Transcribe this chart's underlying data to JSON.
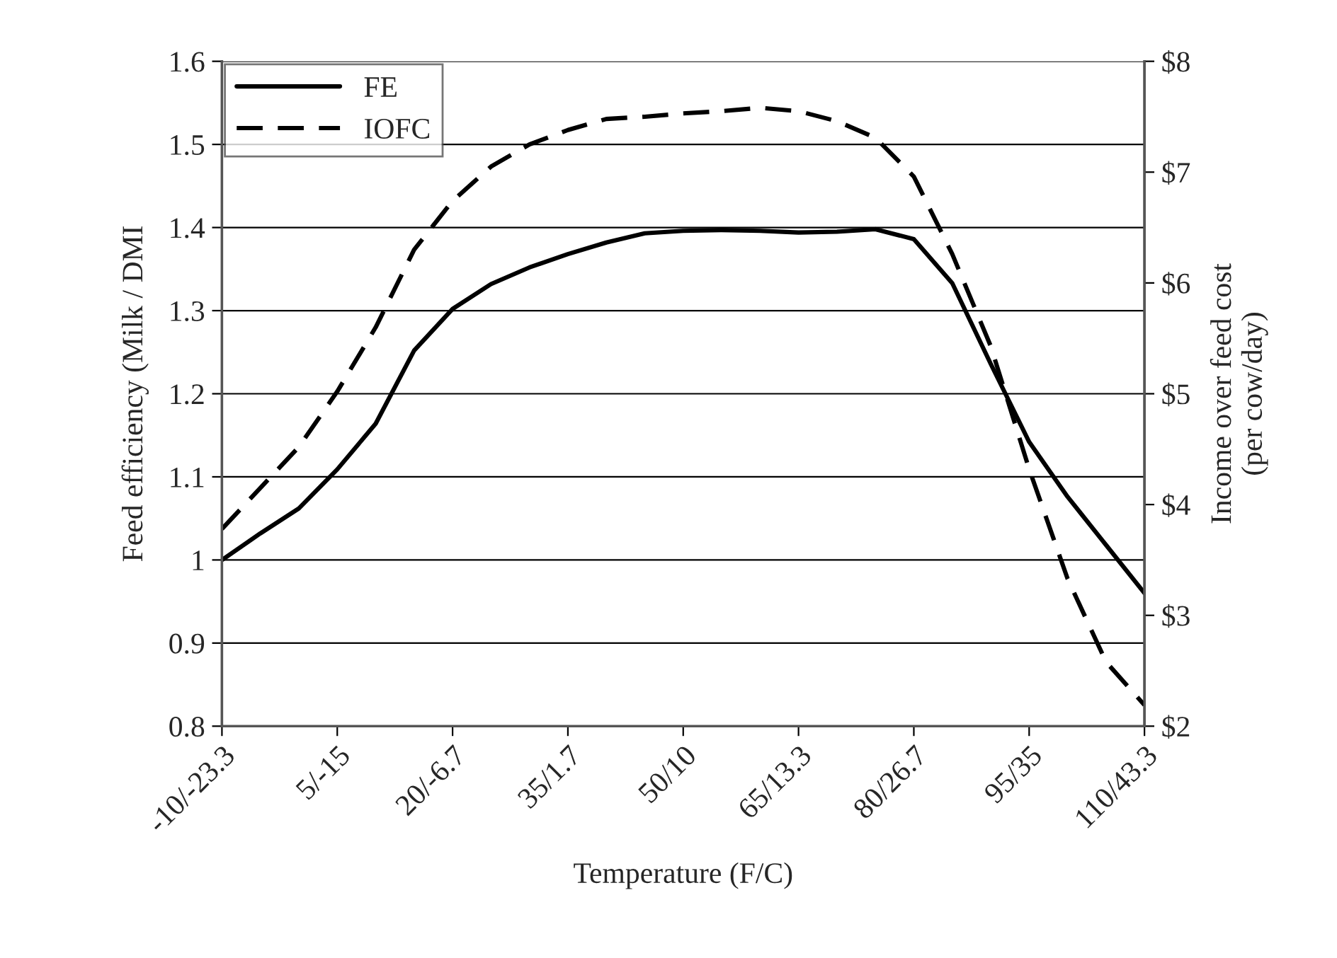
{
  "chart_data": {
    "type": "line",
    "xlabel": "Temperature (F/C)",
    "ylabel": "Feed efficiency (Milk / DMI",
    "y2label": "Income over feed cost\n(per cow/day)",
    "categories": [
      "-10/-23.3",
      null,
      null,
      "5/-15",
      null,
      null,
      "20/-6.7",
      null,
      null,
      "35/1.7",
      null,
      null,
      "50/10",
      null,
      null,
      "65/13.3",
      null,
      null,
      "80/26.7",
      null,
      null,
      "95/35",
      null,
      null,
      "110/43.3"
    ],
    "series": [
      {
        "name": "FE",
        "color": "#000000",
        "line_style": "solid",
        "values": [
          1.0,
          1.032,
          1.062,
          1.109,
          1.164,
          1.252,
          1.302,
          1.332,
          1.352,
          1.368,
          1.382,
          1.393,
          1.396,
          1.397,
          1.396,
          1.394,
          1.395,
          1.398,
          1.386,
          1.333,
          1.236,
          1.142,
          1.076,
          1.018,
          0.96
        ]
      },
      {
        "name": "IOFC",
        "color": "#000000",
        "line_style": "dashed",
        "axis": "y2",
        "values": [
          3.78,
          4.15,
          4.52,
          5.02,
          5.6,
          6.3,
          6.74,
          7.05,
          7.25,
          7.38,
          7.48,
          7.5,
          7.53,
          7.55,
          7.58,
          7.55,
          7.46,
          7.31,
          6.96,
          6.26,
          5.43,
          4.32,
          3.33,
          2.58,
          2.19
        ]
      }
    ],
    "ylim": [
      0.8,
      1.6
    ],
    "yticks": [
      0.8,
      0.9,
      {
        "value": 1,
        "label": "1"
      },
      1.1,
      1.2,
      1.3,
      1.4,
      1.5,
      1.6
    ],
    "y2lim": [
      2,
      8
    ],
    "y2ticks": [
      {
        "value": 2,
        "label": "$2"
      },
      {
        "value": 3,
        "label": "$3"
      },
      {
        "value": 4,
        "label": "$4"
      },
      {
        "value": 5,
        "label": "$5"
      },
      {
        "value": 6,
        "label": "$6"
      },
      {
        "value": 7,
        "label": "$7"
      },
      {
        "value": 8,
        "label": "$8"
      }
    ],
    "grid": "y",
    "legend": "top left"
  }
}
